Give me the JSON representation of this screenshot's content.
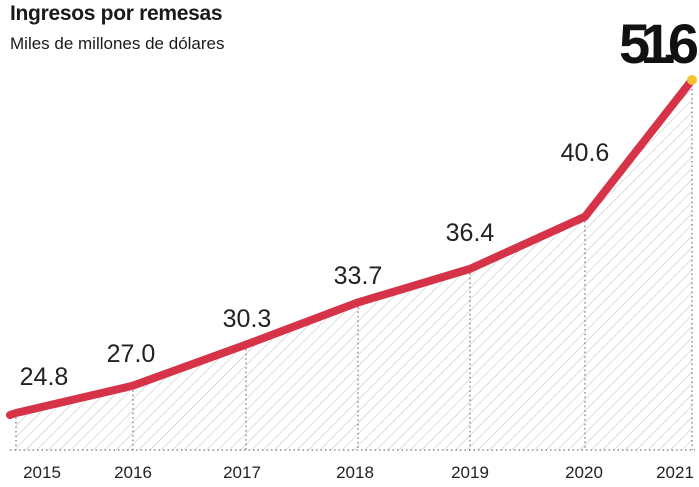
{
  "header": {
    "title": "Ingresos por remesas",
    "subtitle": "Miles de millones de dólares"
  },
  "colors": {
    "line": "#d63348",
    "highlight_dot": "#f2c230",
    "hatch": "#bdbdbd"
  },
  "chart_data": {
    "type": "area",
    "title": "Ingresos por remesas",
    "subtitle": "Miles de millones de dólares",
    "x": [
      "2015",
      "2016",
      "2017",
      "2018",
      "2019",
      "2020",
      "2021"
    ],
    "series": [
      {
        "values": [
          24.8,
          27.0,
          30.3,
          33.7,
          36.4,
          40.6,
          51.6
        ]
      }
    ],
    "data_labels": [
      "24.8",
      "27.0",
      "30.3",
      "33.7",
      "36.4",
      "40.6",
      "51.6"
    ],
    "xlabel": "",
    "ylabel": "",
    "grid": "vertical dotted lines at each year",
    "fill": "diagonal hatch under the line",
    "highlight": "last value shown large and bold"
  }
}
